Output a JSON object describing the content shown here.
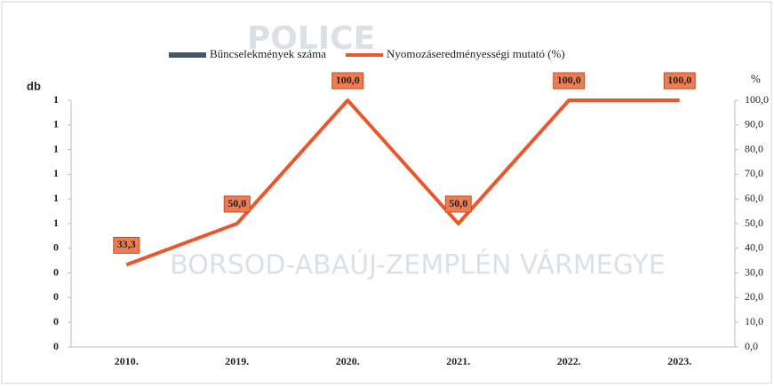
{
  "chart_data": {
    "type": "bar-line",
    "watermarks": [
      "POLICE",
      "BORSOD-ABAÚJ-ZEMPLÉN VÁRMEGYE"
    ],
    "y_label": "db",
    "y2_label": "%",
    "categories": [
      "2010.",
      "2019.",
      "2020.",
      "2021.",
      "2022.",
      "2023."
    ],
    "series": [
      {
        "name": "Bűncselekmények száma",
        "color": "#44546a",
        "type": "bar",
        "values": [
          0,
          0,
          0,
          0,
          0,
          0
        ]
      },
      {
        "name": "Nyomozáseredményességi mutató (%)",
        "color": "#e9572d",
        "type": "line",
        "axis": "y2",
        "values": [
          33.3,
          50.0,
          100.0,
          50.0,
          100.0,
          100.0
        ],
        "value_labels": [
          "33,3",
          "50,0",
          "100,0",
          "50,0",
          "100,0",
          "100,0"
        ]
      }
    ],
    "ylim": [
      0,
      1
    ],
    "yticks": [
      0,
      {
        "value": 0.1,
        "label": "0"
      },
      {
        "value": 0.2,
        "label": "0"
      },
      {
        "value": 0.3,
        "label": "0"
      },
      {
        "value": 0.4,
        "label": "0"
      },
      {
        "value": 0.5,
        "label": "1"
      },
      {
        "value": 0.6,
        "label": "1"
      },
      {
        "value": 0.7,
        "label": "1"
      },
      {
        "value": 0.8,
        "label": "1"
      },
      {
        "value": 0.9,
        "label": "1"
      },
      1
    ],
    "y2lim": [
      0,
      100
    ],
    "y2ticks": [
      {
        "value": 0,
        "label": "0,0"
      },
      {
        "value": 10,
        "label": "10,0"
      },
      {
        "value": 20,
        "label": "20,0"
      },
      {
        "value": 30,
        "label": "30,0"
      },
      {
        "value": 40,
        "label": "40,0"
      },
      {
        "value": 50,
        "label": "50,0"
      },
      {
        "value": 60,
        "label": "60,0"
      },
      {
        "value": 70,
        "label": "70,0"
      },
      {
        "value": 80,
        "label": "80,0"
      },
      {
        "value": 90,
        "label": "90,0"
      },
      {
        "value": 100,
        "label": "100,0"
      }
    ],
    "label_color": "#ee7c52",
    "legend": "top"
  }
}
